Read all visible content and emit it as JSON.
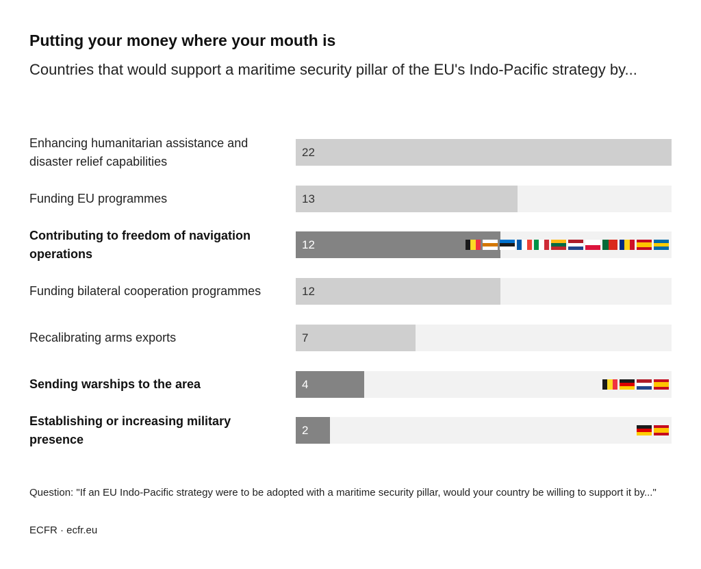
{
  "chart_data": {
    "type": "bar",
    "title": "Putting your money where your mouth is",
    "subtitle": "Countries that would support a maritime security pillar of the EU's Indo-Pacific strategy by...",
    "xlim": [
      0,
      22
    ],
    "categories": [
      "Enhancing humanitarian assistance and disaster relief capabilities",
      "Funding EU programmes",
      "Contributing to freedom of navigation operations",
      "Funding bilateral cooperation programmes",
      "Recalibrating arms exports",
      "Sending warships to the area",
      "Establishing or increasing military presence"
    ],
    "values": [
      22,
      13,
      12,
      12,
      7,
      4,
      2
    ],
    "value_labels": [
      "22",
      "13",
      "12",
      "12",
      "7",
      "4",
      "2"
    ],
    "highlighted": [
      false,
      false,
      true,
      false,
      false,
      true,
      true
    ],
    "flags": [
      [],
      [],
      [
        "belgium",
        "cyprus",
        "estonia",
        "france",
        "italy",
        "lithuania",
        "netherlands",
        "poland",
        "portugal",
        "romania",
        "spain",
        "sweden"
      ],
      [],
      [],
      [
        "belgium",
        "germany",
        "netherlands",
        "spain"
      ],
      [
        "germany",
        "spain"
      ]
    ],
    "colors": {
      "highlight_bar": "#838383",
      "bar": "#cfcfcf",
      "track": "#f2f2f2"
    }
  },
  "footnote": "Question: \"If an EU Indo-Pacific strategy were to be adopted with a maritime security pillar, would your country be willing to support it by...\"",
  "source": "ECFR · ecfr.eu"
}
